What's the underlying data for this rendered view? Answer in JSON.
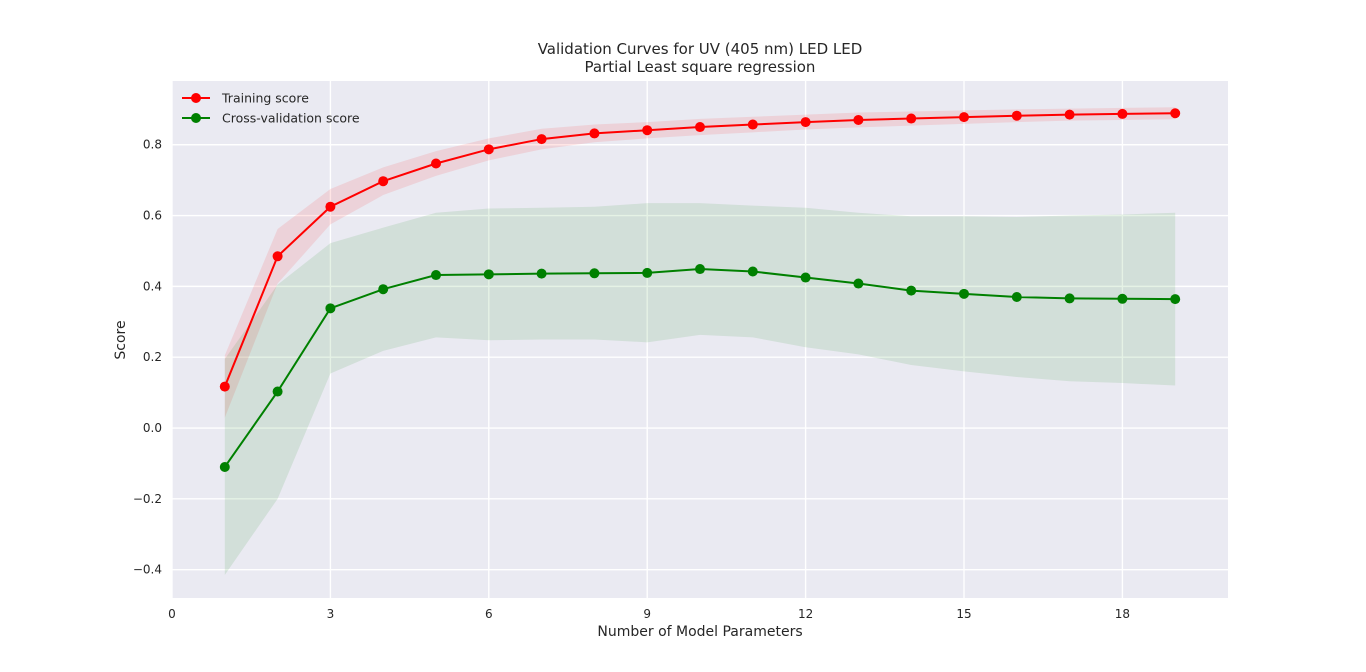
{
  "chart_data": {
    "type": "line",
    "title": "Validation Curves for UV (405 nm) LED LED",
    "subtitle": "Partial Least square regression",
    "xlabel": "Number of Model Parameters",
    "ylabel": "Score",
    "xlim": [
      0,
      20
    ],
    "ylim": [
      -0.48,
      0.98
    ],
    "xticks": [
      0,
      3,
      6,
      9,
      12,
      15,
      18
    ],
    "yticks": [
      -0.4,
      -0.2,
      0.0,
      0.2,
      0.4,
      0.6,
      0.8
    ],
    "ytick_labels": [
      "−0.4",
      "−0.2",
      "0.0",
      "0.2",
      "0.4",
      "0.6",
      "0.8"
    ],
    "grid": true,
    "legend": "top-left",
    "x": [
      1,
      2,
      3,
      4,
      5,
      6,
      7,
      8,
      9,
      10,
      11,
      12,
      13,
      14,
      15,
      16,
      17,
      18,
      19
    ],
    "series": [
      {
        "name": "Training score",
        "color": "#ff0000",
        "band_color": "#ff0000",
        "values": [
          0.117,
          0.485,
          0.625,
          0.697,
          0.747,
          0.787,
          0.816,
          0.832,
          0.841,
          0.85,
          0.857,
          0.864,
          0.87,
          0.874,
          0.878,
          0.882,
          0.885,
          0.887,
          0.889
        ],
        "upper": [
          0.205,
          0.562,
          0.675,
          0.736,
          0.782,
          0.818,
          0.845,
          0.857,
          0.864,
          0.873,
          0.879,
          0.885,
          0.891,
          0.894,
          0.897,
          0.9,
          0.902,
          0.904,
          0.906
        ],
        "lower": [
          0.029,
          0.408,
          0.575,
          0.658,
          0.712,
          0.756,
          0.787,
          0.807,
          0.818,
          0.827,
          0.835,
          0.843,
          0.849,
          0.854,
          0.859,
          0.864,
          0.868,
          0.87,
          0.872
        ]
      },
      {
        "name": "Cross-validation score",
        "color": "#008000",
        "band_color": "#008000",
        "values": [
          -0.11,
          0.103,
          0.338,
          0.392,
          0.432,
          0.434,
          0.436,
          0.437,
          0.438,
          0.449,
          0.442,
          0.425,
          0.408,
          0.388,
          0.379,
          0.37,
          0.366,
          0.365,
          0.364
        ],
        "upper": [
          0.195,
          0.405,
          0.522,
          0.566,
          0.608,
          0.62,
          0.622,
          0.625,
          0.635,
          0.635,
          0.628,
          0.622,
          0.608,
          0.598,
          0.598,
          0.596,
          0.6,
          0.603,
          0.608
        ],
        "lower": [
          -0.415,
          -0.2,
          0.154,
          0.218,
          0.256,
          0.248,
          0.25,
          0.25,
          0.242,
          0.263,
          0.256,
          0.228,
          0.208,
          0.178,
          0.16,
          0.144,
          0.132,
          0.127,
          0.12
        ]
      }
    ]
  },
  "colors": {
    "plot_background": "#eaeaf2",
    "grid": "#ffffff",
    "text": "#262626"
  }
}
